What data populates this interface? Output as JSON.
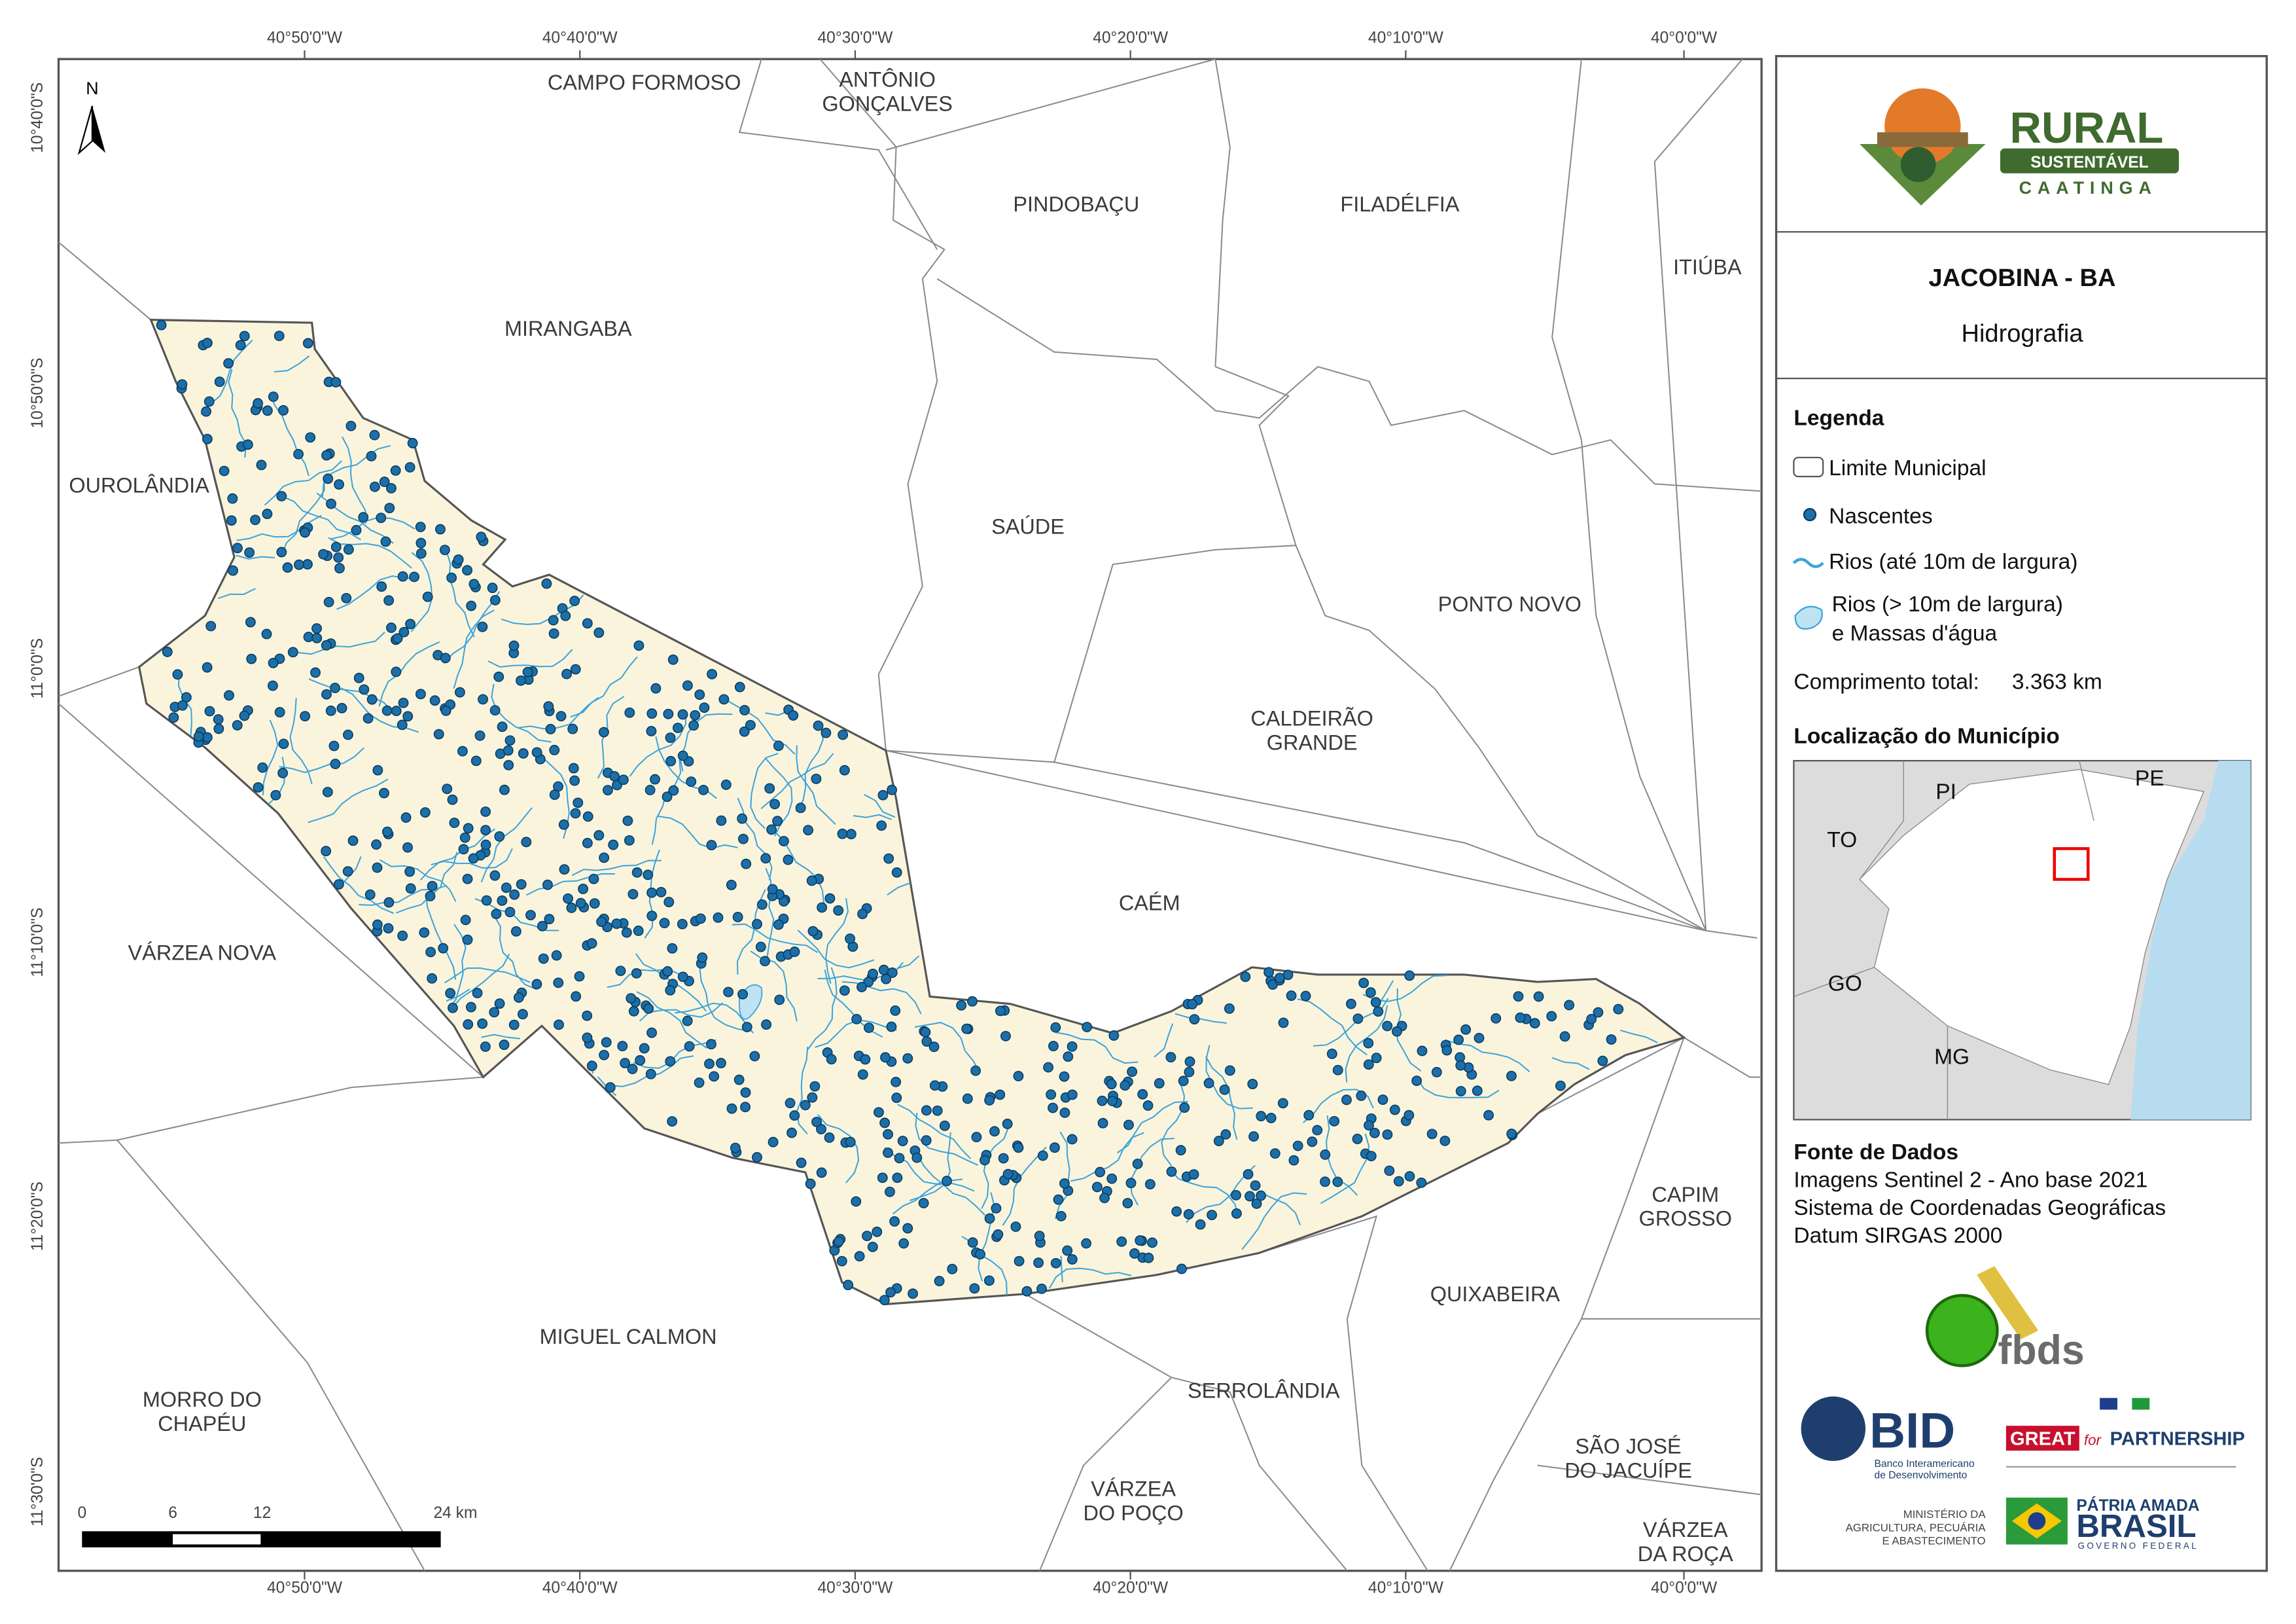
{
  "map": {
    "north": "N",
    "places": [
      {
        "lines": [
          "CAMPO FORMOSO"
        ]
      },
      {
        "lines": [
          "ANTÔNIO",
          "GONÇALVES"
        ]
      },
      {
        "lines": [
          "PINDOBAÇU"
        ]
      },
      {
        "lines": [
          "FILADÉLFIA"
        ]
      },
      {
        "lines": [
          "ITIÚBA"
        ]
      },
      {
        "lines": [
          "MIRANGABA"
        ]
      },
      {
        "lines": [
          "OUROLÂNDIA"
        ]
      },
      {
        "lines": [
          "SAÚDE"
        ]
      },
      {
        "lines": [
          "PONTO NOVO"
        ]
      },
      {
        "lines": [
          "CALDEIRÃO",
          "GRANDE"
        ]
      },
      {
        "lines": [
          "CAÉM"
        ]
      },
      {
        "lines": [
          "VÁRZEA NOVA"
        ]
      },
      {
        "lines": [
          "CAPIM",
          "GROSSO"
        ]
      },
      {
        "lines": [
          "QUIXABEIRA"
        ]
      },
      {
        "lines": [
          "MIGUEL CALMON"
        ]
      },
      {
        "lines": [
          "SERROLÂNDIA"
        ]
      },
      {
        "lines": [
          "MORRO DO",
          "CHAPÉU"
        ]
      },
      {
        "lines": [
          "SÃO JOSÉ",
          "DO JACUÍPE"
        ]
      },
      {
        "lines": [
          "VÁRZEA",
          "DO POÇO"
        ]
      },
      {
        "lines": [
          "VÁRZEA",
          "DA ROÇA"
        ]
      }
    ],
    "graticule": {
      "lon": [
        "40°50'0\"W",
        "40°40'0\"W",
        "40°30'0\"W",
        "40°20'0\"W",
        "40°10'0\"W",
        "40°0'0\"W"
      ],
      "lat": [
        "10°40'0\"S",
        "10°50'0\"S",
        "11°0'0\"S",
        "11°10'0\"S",
        "11°20'0\"S",
        "11°30'0\"S"
      ]
    },
    "scale": [
      "0",
      "6",
      "12",
      "24 km"
    ]
  },
  "panel": {
    "logo": {
      "title": "RURAL",
      "sub": "SUSTENTÁVEL",
      "region": "CAATINGA"
    },
    "title": "JACOBINA - BA",
    "subtitle": "Hidrografia",
    "legend": {
      "heading": "Legenda",
      "items": [
        "Limite Municipal",
        "Nascentes",
        "Rios (até 10m de largura)",
        "Rios (> 10m de largura)",
        "e Massas d'água"
      ]
    },
    "length_label": "Comprimento total:",
    "length_value": "3.363 km",
    "location_heading": "Localização do Município",
    "states": [
      "PI",
      "PE",
      "TO",
      "GO",
      "MG"
    ],
    "sources": {
      "heading": "Fonte de Dados",
      "lines": [
        "Imagens Sentinel 2 - Ano base 2021",
        "Sistema de Coordenadas Geográficas",
        "Datum SIRGAS 2000"
      ]
    },
    "partners": {
      "fbds": "fbds",
      "bid": "BID",
      "bid_name": [
        "Banco Interamericano",
        "de Desenvolvimento"
      ],
      "great": "GREAT",
      "great_for": "for",
      "great_partnership": "PARTNERSHIP",
      "ministry": [
        "MINISTÉRIO DA",
        "AGRICULTURA, PECUÁRIA",
        "E ABASTECIMENTO"
      ],
      "patria": "PÁTRIA AMADA",
      "brasil": "BRASIL",
      "governo": "GOVERNO FEDERAL"
    }
  }
}
